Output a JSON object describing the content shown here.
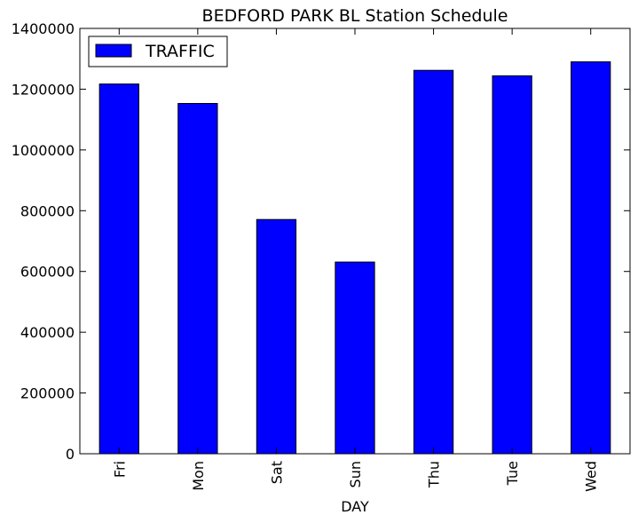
{
  "chart_data": {
    "type": "bar",
    "title": "BEDFORD PARK BL Station Schedule",
    "xlabel": "DAY",
    "ylabel": "",
    "categories": [
      "Fri",
      "Mon",
      "Sat",
      "Sun",
      "Thu",
      "Tue",
      "Wed"
    ],
    "series": [
      {
        "name": "TRAFFIC",
        "color": "#0000ff",
        "values": [
          1217000,
          1153000,
          771000,
          631000,
          1262000,
          1244000,
          1290000
        ]
      }
    ],
    "ylim": [
      0,
      1400000
    ],
    "yticks": [
      0,
      200000,
      400000,
      600000,
      800000,
      1000000,
      1200000,
      1400000
    ],
    "ytick_labels": [
      "0",
      "200000",
      "400000",
      "600000",
      "800000",
      "1000000",
      "1200000",
      "1400000"
    ],
    "grid": false,
    "legend_position": "top-left"
  }
}
